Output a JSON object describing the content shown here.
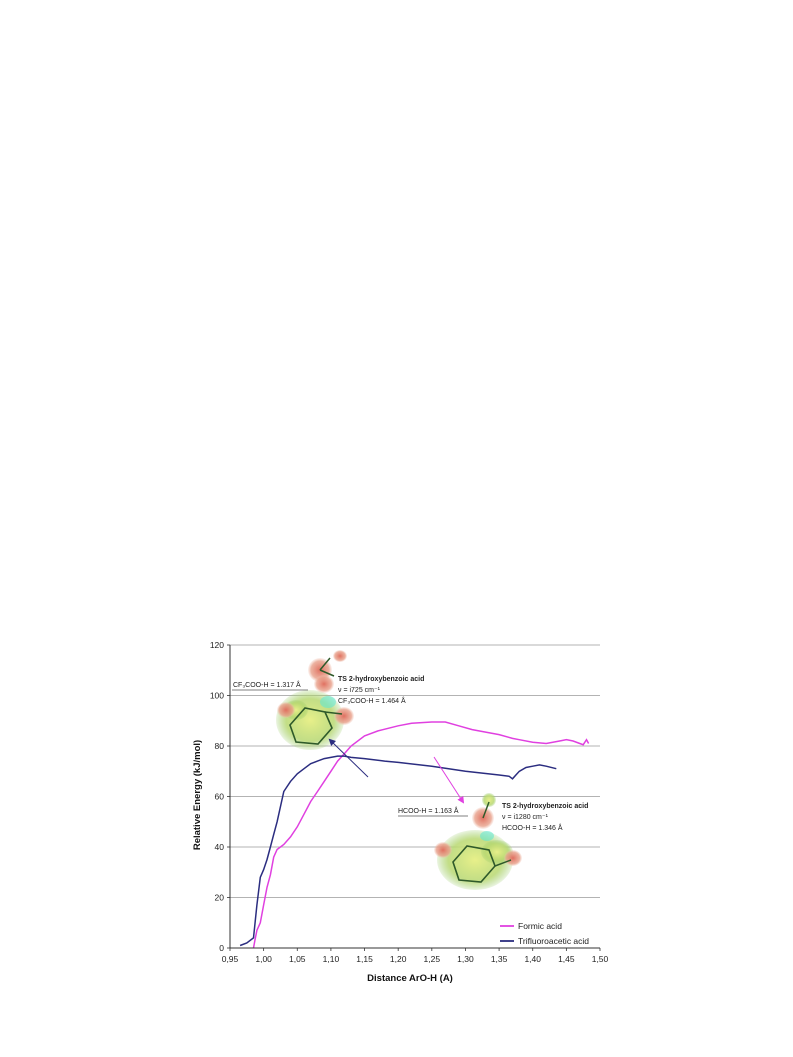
{
  "chart_data": {
    "type": "line",
    "xlabel": "Distance ArO-H (A)",
    "ylabel": "Relative Energy (kJ/mol)",
    "xlim": [
      0.95,
      1.5
    ],
    "ylim": [
      0,
      120
    ],
    "x_ticks": [
      "0,95",
      "1,00",
      "1,05",
      "1,10",
      "1,15",
      "1,20",
      "1,25",
      "1,30",
      "1,35",
      "1,40",
      "1,45",
      "1,50"
    ],
    "y_ticks": [
      "0",
      "20",
      "40",
      "60",
      "80",
      "100",
      "120"
    ],
    "grid": "horizontal",
    "legend_position": "bottom-right",
    "colors": {
      "formic": "#e040e0",
      "tfa": "#2b2d80",
      "grid": "#9a9a9a"
    },
    "series": [
      {
        "name": "Formic acid",
        "points": [
          [
            0.985,
            0
          ],
          [
            0.987,
            3
          ],
          [
            0.99,
            7
          ],
          [
            0.995,
            10
          ],
          [
            1.0,
            17
          ],
          [
            1.005,
            24
          ],
          [
            1.01,
            29
          ],
          [
            1.015,
            36
          ],
          [
            1.02,
            39
          ],
          [
            1.03,
            41
          ],
          [
            1.04,
            44
          ],
          [
            1.05,
            48
          ],
          [
            1.06,
            53
          ],
          [
            1.07,
            58
          ],
          [
            1.08,
            62
          ],
          [
            1.09,
            66
          ],
          [
            1.1,
            70
          ],
          [
            1.11,
            74
          ],
          [
            1.12,
            77
          ],
          [
            1.13,
            80
          ],
          [
            1.15,
            84
          ],
          [
            1.17,
            86
          ],
          [
            1.2,
            88
          ],
          [
            1.22,
            89
          ],
          [
            1.25,
            89.5
          ],
          [
            1.27,
            89.5
          ],
          [
            1.29,
            88
          ],
          [
            1.31,
            86.5
          ],
          [
            1.33,
            85.5
          ],
          [
            1.35,
            84.5
          ],
          [
            1.37,
            83
          ],
          [
            1.38,
            82.5
          ],
          [
            1.4,
            81.5
          ],
          [
            1.42,
            81
          ],
          [
            1.44,
            82
          ],
          [
            1.45,
            82.5
          ],
          [
            1.46,
            82
          ],
          [
            1.47,
            81
          ],
          [
            1.475,
            80.5
          ],
          [
            1.48,
            82.5
          ],
          [
            1.483,
            81
          ]
        ]
      },
      {
        "name": "Trifluoroacetic acid",
        "points": [
          [
            0.965,
            1
          ],
          [
            0.975,
            2
          ],
          [
            0.985,
            4
          ],
          [
            0.99,
            17
          ],
          [
            0.995,
            28
          ],
          [
            1.0,
            31
          ],
          [
            1.005,
            35
          ],
          [
            1.01,
            40
          ],
          [
            1.015,
            45
          ],
          [
            1.02,
            50
          ],
          [
            1.03,
            62
          ],
          [
            1.04,
            66
          ],
          [
            1.05,
            69
          ],
          [
            1.06,
            71
          ],
          [
            1.07,
            73
          ],
          [
            1.08,
            74
          ],
          [
            1.09,
            75
          ],
          [
            1.1,
            75.5
          ],
          [
            1.11,
            76
          ],
          [
            1.12,
            76
          ],
          [
            1.13,
            75.5
          ],
          [
            1.15,
            75
          ],
          [
            1.18,
            74
          ],
          [
            1.2,
            73.5
          ],
          [
            1.25,
            72
          ],
          [
            1.3,
            70
          ],
          [
            1.35,
            68.5
          ],
          [
            1.365,
            68
          ],
          [
            1.37,
            67
          ],
          [
            1.375,
            68.5
          ],
          [
            1.38,
            70
          ],
          [
            1.39,
            71.5
          ],
          [
            1.4,
            72
          ],
          [
            1.41,
            72.5
          ],
          [
            1.42,
            72
          ],
          [
            1.435,
            71
          ]
        ]
      }
    ],
    "annotations": {
      "tfa_left_label": "CF₃COO-H = 1.317 Å",
      "tfa_title": "TS 2-hydroxybenzoic acid",
      "tfa_freq": "ν = i725 cm⁻¹",
      "tfa_dist": "CF₃COO-H = 1.464 Å",
      "formic_left_label": "HCOO-H = 1.163 Å",
      "formic_title": "TS 2-hydroxybenzoic acid",
      "formic_freq": "ν = i1280 cm⁻¹",
      "formic_dist": "HCOO-H = 1.346 Å"
    }
  }
}
